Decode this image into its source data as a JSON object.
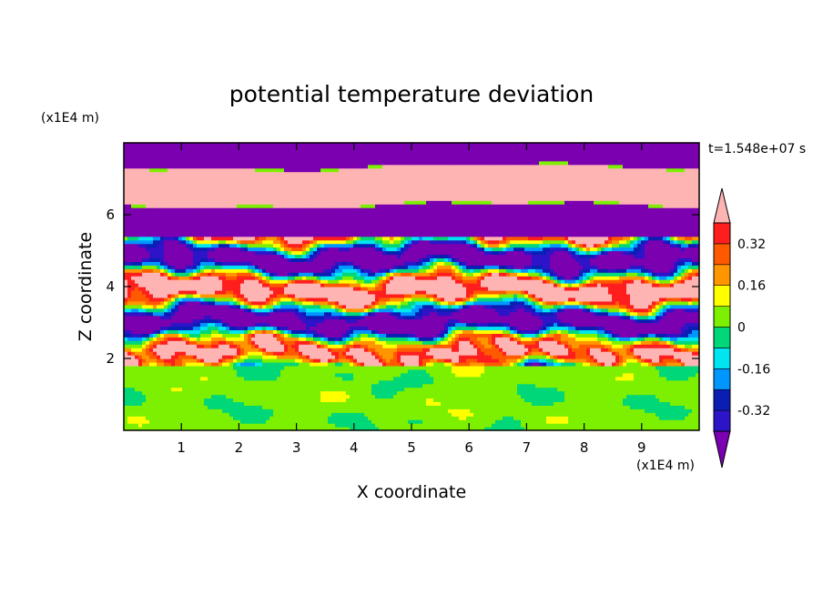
{
  "chart_data": {
    "type": "heatmap",
    "title": "potential temperature deviation",
    "xlabel": "X coordinate",
    "ylabel": "Z coordinate",
    "x_unit": "(x1E4 m)",
    "y_unit": "(x1E4 m)",
    "time_label": "t=1.548e+07 s",
    "xlim": [
      0,
      10
    ],
    "ylim": [
      0,
      8
    ],
    "xticks": [
      1,
      2,
      3,
      4,
      5,
      6,
      7,
      8,
      9
    ],
    "yticks": [
      2,
      4,
      6
    ],
    "colorbar": {
      "levels": [
        -0.4,
        -0.32,
        -0.24,
        -0.16,
        -0.08,
        0,
        0.08,
        0.16,
        0.24,
        0.32,
        0.4
      ],
      "colors": [
        "#7a00b0",
        "#2e14c8",
        "#0a1eb4",
        "#0096ff",
        "#00e6f0",
        "#00d778",
        "#7cf000",
        "#ffff00",
        "#ff9600",
        "#ff5a00",
        "#ff1e1e",
        "#ffb4b4"
      ],
      "labels": [
        "0.32",
        "0.16",
        "0",
        "-0.16",
        "-0.32"
      ]
    },
    "grid": false,
    "legend": "right"
  }
}
